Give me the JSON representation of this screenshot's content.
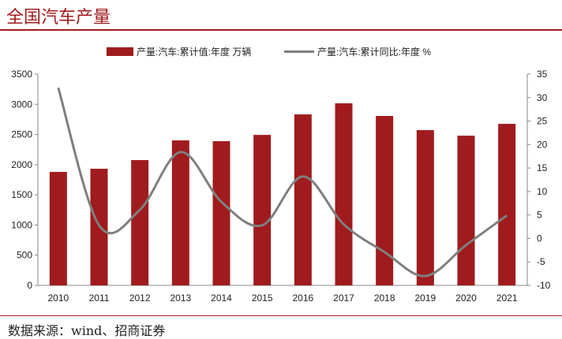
{
  "header": {
    "title": "全国汽车产量"
  },
  "footer": {
    "source": "数据来源：wind、招商证券"
  },
  "chart_data": {
    "type": "bar+line",
    "title": "全国汽车产量",
    "categories": [
      "2010",
      "2011",
      "2012",
      "2013",
      "2014",
      "2015",
      "2016",
      "2017",
      "2018",
      "2019",
      "2020",
      "2021"
    ],
    "series": [
      {
        "name": "产量:汽车:累计值:年度 万辆",
        "type": "bar",
        "axis": "left",
        "color": "#a01b1d",
        "values": [
          1880,
          1932,
          2076,
          2402,
          2389,
          2493,
          2833,
          3016,
          2807,
          2572,
          2480,
          2676
        ]
      },
      {
        "name": "产量:汽车:累计同比:年度 %",
        "type": "line",
        "axis": "right",
        "color": "#7f7f7f",
        "values": [
          32.1,
          2.8,
          6.1,
          18.4,
          7.8,
          2.8,
          13.2,
          3.0,
          -2.9,
          -8.0,
          -1.4,
          4.9
        ]
      }
    ],
    "left_axis": {
      "ylim": [
        0,
        3500
      ],
      "ticks": [
        "0",
        "500",
        "1000",
        "1500",
        "2000",
        "2500",
        "3000",
        "3500"
      ]
    },
    "right_axis": {
      "ylim": [
        -10,
        35
      ],
      "ticks": [
        "-10",
        "-5",
        "0",
        "5",
        "10",
        "15",
        "20",
        "25",
        "30",
        "35"
      ]
    },
    "legend": "top",
    "grid": false
  }
}
